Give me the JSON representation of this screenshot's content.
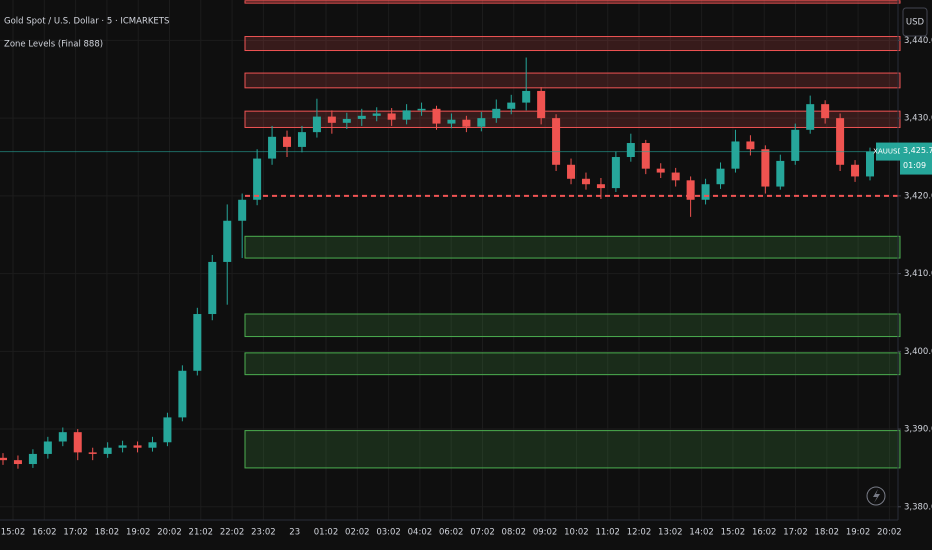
{
  "chart_data": {
    "type": "candlestick",
    "title": "Gold Spot / U.S. Dollar · 5 · ICMARKETS",
    "subtitle": "Zone Levels (Final 888)",
    "currency": "USD",
    "symbol": "XAUUSD",
    "last_price": 3425.7,
    "last_price_label": "3,425.70",
    "countdown": "01:09",
    "up_color": "#26a69a",
    "down_color": "#ef5350",
    "x_labels": [
      "15:02",
      "16:02",
      "17:02",
      "18:02",
      "19:02",
      "20:02",
      "21:02",
      "22:02",
      "23:02",
      "23",
      "01:02",
      "02:02",
      "03:02",
      "04:02",
      "06:02",
      "07:02",
      "08:02",
      "09:02",
      "10:02",
      "11:02",
      "12:02",
      "13:02",
      "14:02",
      "15:02",
      "16:02",
      "17:02",
      "18:02",
      "19:02",
      "20:02"
    ],
    "open": [
      3386.3,
      3386.0,
      3385.5,
      3386.8,
      3388.4,
      3389.6,
      3387.0,
      3386.8,
      3387.6,
      3387.9,
      3387.6,
      3388.3,
      3391.5,
      3397.5,
      3404.8,
      3411.5,
      3416.8,
      3419.5,
      3424.8,
      3427.6,
      3426.3,
      3428.2,
      3430.2,
      3429.4,
      3429.9,
      3430.3,
      3430.6,
      3429.8,
      3431.0,
      3431.2,
      3429.3,
      3429.8,
      3428.9,
      3430.0,
      3431.2,
      3432.0,
      3433.5,
      3430.0,
      3424.0,
      3422.2,
      3421.5,
      3421.0,
      3425.0,
      3426.8,
      3423.5,
      3423.0,
      3422.0,
      3419.5,
      3421.5,
      3423.5,
      3427.0,
      3426.0,
      3421.2,
      3424.5,
      3428.5,
      3431.8,
      3430.0,
      3424.0,
      3422.5
    ],
    "high": [
      3386.9,
      3386.6,
      3387.4,
      3389.0,
      3390.2,
      3390.0,
      3387.6,
      3388.3,
      3388.5,
      3388.4,
      3389.0,
      3392.1,
      3398.2,
      3405.6,
      3412.4,
      3418.9,
      3420.3,
      3426.0,
      3429.0,
      3428.4,
      3429.0,
      3432.5,
      3431.0,
      3430.7,
      3431.2,
      3431.4,
      3431.3,
      3431.8,
      3432.0,
      3431.6,
      3430.6,
      3430.3,
      3430.8,
      3432.4,
      3433.0,
      3437.8,
      3434.0,
      3430.5,
      3424.8,
      3423.0,
      3422.3,
      3425.7,
      3428.0,
      3427.2,
      3424.2,
      3423.6,
      3422.5,
      3422.2,
      3424.3,
      3428.5,
      3427.8,
      3426.5,
      3425.3,
      3429.3,
      3432.9,
      3432.3,
      3430.6,
      3424.6,
      3426.2
    ],
    "low": [
      3385.4,
      3384.9,
      3385.0,
      3386.2,
      3387.8,
      3386.0,
      3386.0,
      3386.3,
      3387.0,
      3387.0,
      3387.1,
      3387.8,
      3391.0,
      3396.9,
      3404.0,
      3406.0,
      3412.0,
      3418.8,
      3424.0,
      3425.0,
      3425.6,
      3427.5,
      3428.0,
      3428.6,
      3429.0,
      3429.6,
      3429.0,
      3429.2,
      3430.3,
      3428.5,
      3428.7,
      3428.2,
      3428.3,
      3429.4,
      3430.5,
      3431.0,
      3429.2,
      3423.2,
      3421.5,
      3420.8,
      3419.6,
      3420.5,
      3424.4,
      3422.8,
      3422.3,
      3421.2,
      3417.3,
      3418.9,
      3420.9,
      3423.0,
      3425.2,
      3420.3,
      3420.8,
      3424.0,
      3428.0,
      3429.3,
      3423.2,
      3421.8,
      3422.0
    ],
    "close": [
      3386.0,
      3385.5,
      3386.8,
      3388.4,
      3389.6,
      3387.0,
      3386.8,
      3387.6,
      3387.9,
      3387.6,
      3388.3,
      3391.5,
      3397.5,
      3404.8,
      3411.5,
      3416.8,
      3419.5,
      3424.8,
      3427.6,
      3426.3,
      3428.2,
      3430.2,
      3429.4,
      3429.9,
      3430.3,
      3430.6,
      3429.8,
      3431.0,
      3431.2,
      3429.3,
      3429.8,
      3428.9,
      3430.0,
      3431.2,
      3432.0,
      3433.5,
      3430.0,
      3424.0,
      3422.2,
      3421.5,
      3421.0,
      3425.0,
      3426.8,
      3423.5,
      3423.0,
      3422.0,
      3419.5,
      3421.5,
      3423.5,
      3427.0,
      3426.0,
      3421.2,
      3424.5,
      3428.5,
      3431.8,
      3430.0,
      3424.0,
      3422.5,
      3425.7
    ],
    "resistance_zones": [
      [
        3445.1,
        3444.8
      ],
      [
        3440.5,
        3438.7
      ],
      [
        3435.8,
        3433.9
      ],
      [
        3430.9,
        3428.8
      ]
    ],
    "support_zones": [
      [
        3414.8,
        3412.0
      ],
      [
        3404.8,
        3401.9
      ],
      [
        3399.8,
        3397.0
      ],
      [
        3389.8,
        3385.0
      ]
    ],
    "resistance_color": "#f05454",
    "support_color": "#4caf50",
    "dashed_level": 3420,
    "ylim": [
      3378.3,
      3445.2
    ],
    "yticks": [
      {
        "value": 3440,
        "label": "3,440.00"
      },
      {
        "value": 3430,
        "label": "3,430.00"
      },
      {
        "value": 3420,
        "label": "3,420.00"
      },
      {
        "value": 3410,
        "label": "3,410.00"
      },
      {
        "value": 3400,
        "label": "3,400.00"
      },
      {
        "value": 3390,
        "label": "3,390.00"
      },
      {
        "value": 3380,
        "label": "3,380.00"
      }
    ],
    "grid": true
  }
}
